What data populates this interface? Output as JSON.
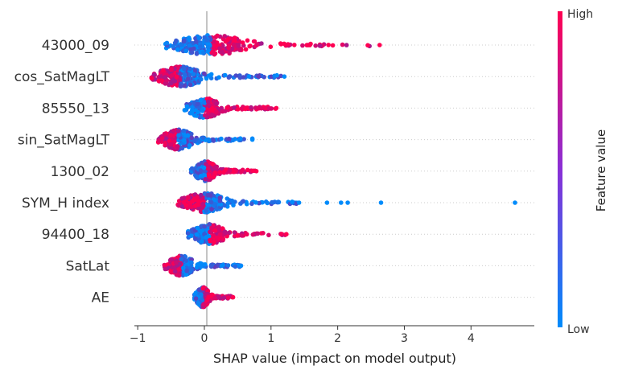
{
  "chart_data": {
    "type": "scatter",
    "subtype": "shap-beeswarm",
    "xlabel": "SHAP value (impact on model output)",
    "xlim": [
      -1.05,
      4.95
    ],
    "xticks": [
      -1,
      0,
      1,
      2,
      3,
      4
    ],
    "zero_line": 0,
    "colorbar": {
      "label": "Feature value",
      "high_label": "High",
      "low_label": "Low",
      "low_color": "#008bfb",
      "high_color": "#ff0052"
    },
    "features": [
      {
        "name": "43000_09",
        "min": -0.6,
        "max": 2.63,
        "outliers": []
      },
      {
        "name": "cos_SatMagLT",
        "min": -0.8,
        "max": 1.2,
        "outliers": []
      },
      {
        "name": "85550_13",
        "min": -0.3,
        "max": 1.08,
        "outliers": []
      },
      {
        "name": "sin_SatMagLT",
        "min": -0.7,
        "max": 0.72,
        "outliers": []
      },
      {
        "name": "1300_02",
        "min": -0.2,
        "max": 0.78,
        "outliers": []
      },
      {
        "name": "SYM_H index",
        "min": -0.4,
        "max": 1.42,
        "outliers": [
          1.84,
          2.05,
          2.15,
          2.65,
          4.66
        ]
      },
      {
        "name": "94400_18",
        "min": -0.25,
        "max": 1.23,
        "outliers": []
      },
      {
        "name": "SatLat",
        "min": -0.6,
        "max": 0.55,
        "outliers": []
      },
      {
        "name": "AE",
        "min": -0.15,
        "max": 0.43,
        "outliers": []
      }
    ]
  }
}
